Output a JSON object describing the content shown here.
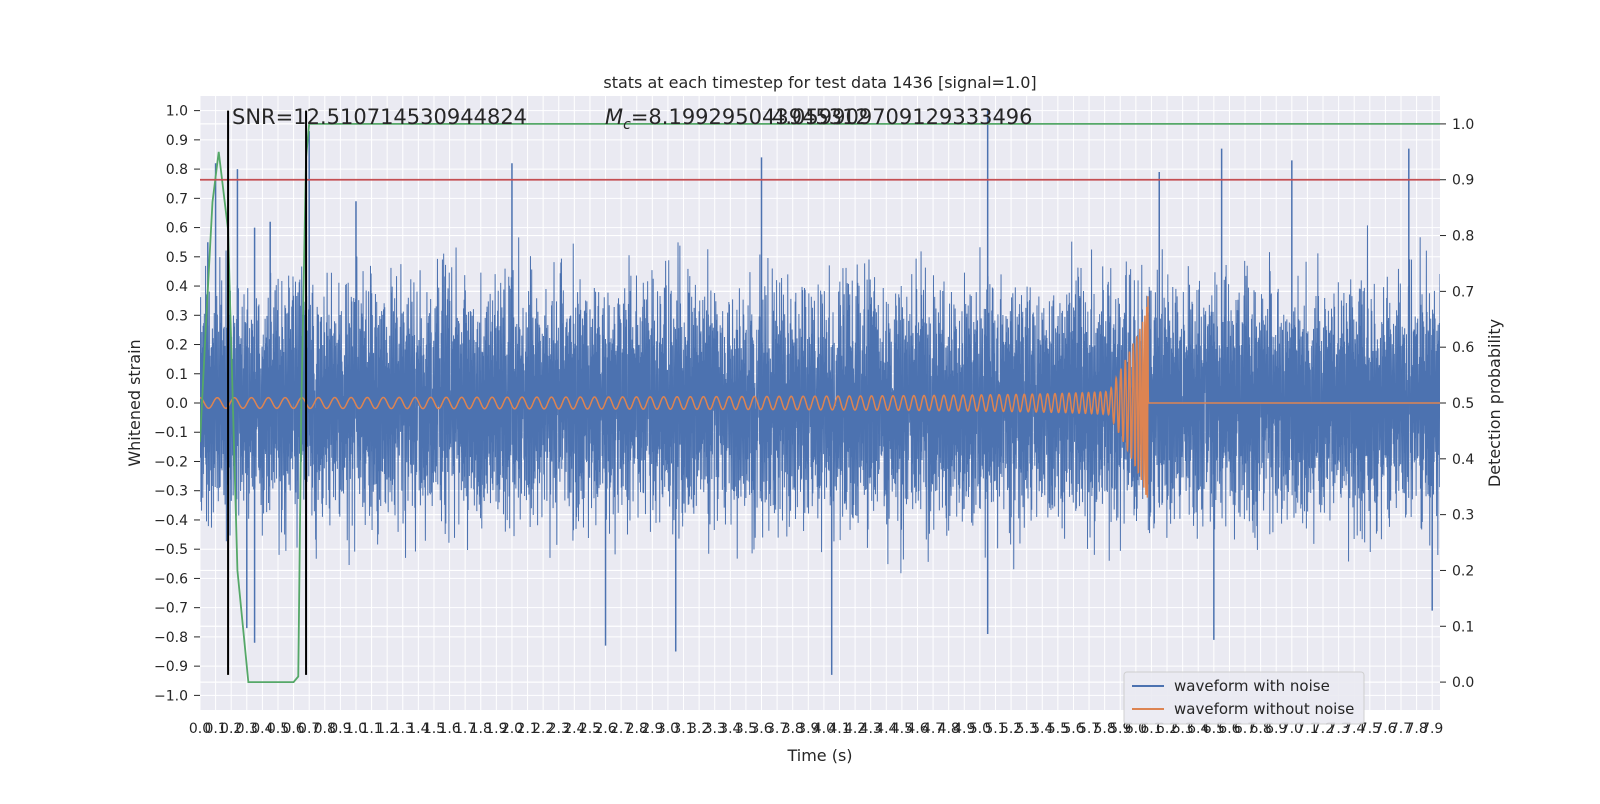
{
  "chart_data": {
    "type": "line",
    "title": "stats at each timestep for test data 1436 [signal=1.0]",
    "xlabel": "Time (s)",
    "ylabel": "Whitened strain",
    "y2label": "Detection probability",
    "xlim": [
      0.0,
      7.95
    ],
    "ylim": [
      -1.05,
      1.05
    ],
    "y2lim": [
      -0.05,
      1.05
    ],
    "x_ticks": [
      0.0,
      0.1,
      0.2,
      0.3,
      0.4,
      0.5,
      0.6,
      0.7,
      0.8,
      0.9,
      1.0,
      1.1,
      1.2,
      1.3,
      1.4,
      1.5,
      1.6,
      1.7,
      1.8,
      1.9,
      2.0,
      2.1,
      2.2,
      2.3,
      2.4,
      2.5,
      2.6,
      2.7,
      2.8,
      2.9,
      3.0,
      3.1,
      3.2,
      3.3,
      3.4,
      3.5,
      3.6,
      3.7,
      3.8,
      3.9,
      4.0,
      4.1,
      4.2,
      4.3,
      4.4,
      4.5,
      4.6,
      4.7,
      4.8,
      4.9,
      5.0,
      5.1,
      5.2,
      5.3,
      5.4,
      5.5,
      5.6,
      5.7,
      5.8,
      5.9,
      6.0,
      6.1,
      6.2,
      6.3,
      6.4,
      6.5,
      6.6,
      6.7,
      6.8,
      6.9,
      7.0,
      7.1,
      7.2,
      7.3,
      7.4,
      7.5,
      7.6,
      7.7,
      7.8,
      7.9
    ],
    "y_ticks": [
      1.0,
      0.9,
      0.8,
      0.7,
      0.6,
      0.5,
      0.4,
      0.3,
      0.2,
      0.1,
      0.0,
      -0.1,
      -0.2,
      -0.3,
      -0.4,
      -0.5,
      -0.6,
      -0.7,
      -0.8,
      -0.9,
      -1.0
    ],
    "y2_ticks": [
      1.0,
      0.9,
      0.8,
      0.7,
      0.6,
      0.5,
      0.4,
      0.3,
      0.2,
      0.1,
      0.0
    ],
    "grid": true,
    "legend_position": "lower-right",
    "annotations": {
      "snr": "SNR=12.510714530944824",
      "mc_prefix": "M",
      "mc_sub": "c",
      "mc_value": "=8.199295043945312",
      "mc_overlap": "4.059909709129333496"
    },
    "series": [
      {
        "name": "waveform with noise",
        "color": "#4c72b0",
        "description_type": "noise",
        "band_amplitude": [
          -0.33,
          0.33
        ],
        "peaks": [
          [
            0.05,
            0.55
          ],
          [
            0.1,
            0.82
          ],
          [
            0.24,
            0.8
          ],
          [
            0.35,
            0.6
          ],
          [
            0.45,
            0.62
          ],
          [
            0.7,
            0.93
          ],
          [
            1.0,
            0.69
          ],
          [
            2.0,
            0.82
          ],
          [
            3.6,
            0.84
          ],
          [
            5.05,
            1.0
          ],
          [
            6.15,
            0.79
          ],
          [
            6.55,
            0.87
          ],
          [
            7.0,
            0.83
          ],
          [
            7.75,
            0.87
          ]
        ],
        "troughs": [
          [
            0.3,
            -0.77
          ],
          [
            0.35,
            -0.82
          ],
          [
            2.6,
            -0.83
          ],
          [
            3.05,
            -0.85
          ],
          [
            4.05,
            -0.93
          ],
          [
            5.05,
            -0.79
          ],
          [
            6.5,
            -0.81
          ],
          [
            7.9,
            -0.71
          ]
        ]
      },
      {
        "name": "waveform without noise",
        "color": "#dd8452",
        "description_type": "chirp",
        "t_merger": 6.08,
        "peak_amplitude": 0.42,
        "min_amplitude": -0.31
      },
      {
        "name": "",
        "color": "#55a868",
        "axis": "right",
        "x": [
          0.0,
          0.04,
          0.08,
          0.12,
          0.18,
          0.24,
          0.31,
          0.34,
          0.38,
          0.45,
          0.55,
          0.6,
          0.63,
          0.65,
          0.68,
          0.7,
          0.73,
          0.77,
          7.95
        ],
        "y": [
          0.43,
          0.65,
          0.86,
          0.95,
          0.81,
          0.2,
          0.0,
          0.0,
          0.0,
          0.0,
          0.0,
          0.0,
          0.01,
          0.5,
          0.94,
          1.0,
          1.0,
          1.0,
          1.0
        ]
      },
      {
        "name": "",
        "color": "#c44e52",
        "axis": "right",
        "x": [
          0.0,
          7.95
        ],
        "y": [
          0.9,
          0.9
        ]
      }
    ],
    "vertical_lines": [
      0.18,
      0.68
    ],
    "vertical_line_range": [
      -0.93,
      1.0
    ],
    "vertical_line_color": "#000000"
  }
}
